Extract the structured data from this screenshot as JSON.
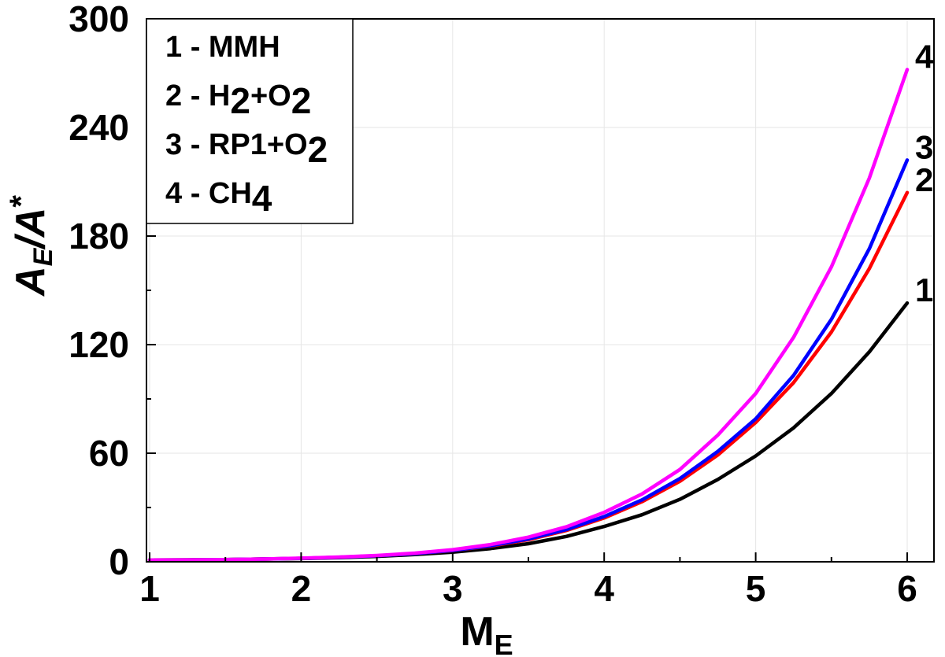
{
  "chart_data": {
    "type": "line",
    "xlabel": {
      "main": "M",
      "sub": "E"
    },
    "ylabel": {
      "part1_main": "A",
      "part1_sub": "E",
      "slash": "/",
      "part2_main": "A",
      "part2_sup": "*"
    },
    "xlim": [
      1,
      6
    ],
    "ylim": [
      0,
      300
    ],
    "xticks": [
      1,
      2,
      3,
      4,
      5,
      6
    ],
    "yticks": [
      0,
      60,
      120,
      180,
      240,
      300
    ],
    "grid": true,
    "legend_position": "top-left",
    "x": [
      1,
      1.25,
      1.5,
      1.75,
      2,
      2.25,
      2.5,
      2.75,
      3,
      3.25,
      3.5,
      3.75,
      4,
      4.25,
      4.5,
      4.75,
      5,
      5.25,
      5.5,
      5.75,
      6
    ],
    "series": [
      {
        "end_label": "1",
        "legend": [
          {
            "t": "1 - MMH",
            "s": ""
          }
        ],
        "color": "#000000",
        "values": [
          1,
          1.05,
          1.2,
          1.5,
          1.8,
          2.3,
          3.0,
          4.0,
          5.3,
          7.3,
          10.0,
          14.0,
          19.5,
          26.0,
          34.5,
          45.5,
          58.5,
          74.0,
          93.0,
          116.0,
          143.0
        ]
      },
      {
        "end_label": "2",
        "legend": [
          {
            "t": "2 - H",
            "s": ""
          },
          {
            "t": "2",
            "s": "sub"
          },
          {
            "t": "+O",
            "s": ""
          },
          {
            "t": "2",
            "s": "sub"
          }
        ],
        "color": "#ff0000",
        "values": [
          1,
          1.05,
          1.2,
          1.5,
          1.9,
          2.5,
          3.3,
          4.5,
          6.2,
          8.7,
          12.2,
          17.3,
          24.2,
          33.2,
          44.5,
          59.0,
          77.0,
          99.0,
          127.0,
          162.0,
          204.0
        ]
      },
      {
        "end_label": "3",
        "legend": [
          {
            "t": "3 - RP1+O",
            "s": ""
          },
          {
            "t": "2",
            "s": "sub"
          }
        ],
        "color": "#0000ff",
        "values": [
          1,
          1.05,
          1.2,
          1.5,
          1.9,
          2.5,
          3.3,
          4.5,
          6.3,
          8.9,
          12.6,
          17.8,
          25.0,
          34.2,
          46.0,
          61.0,
          79.0,
          103.0,
          134.0,
          173.0,
          222.0
        ]
      },
      {
        "end_label": "4",
        "legend": [
          {
            "t": "4 - CH",
            "s": ""
          },
          {
            "t": "4",
            "s": "sub"
          }
        ],
        "color": "#ff00ff",
        "values": [
          1,
          1.05,
          1.2,
          1.5,
          2.0,
          2.6,
          3.5,
          4.8,
          6.7,
          9.5,
          13.6,
          19.3,
          27.3,
          37.5,
          51.0,
          70.0,
          93.0,
          124.0,
          163.0,
          212.0,
          272.0
        ]
      }
    ]
  }
}
